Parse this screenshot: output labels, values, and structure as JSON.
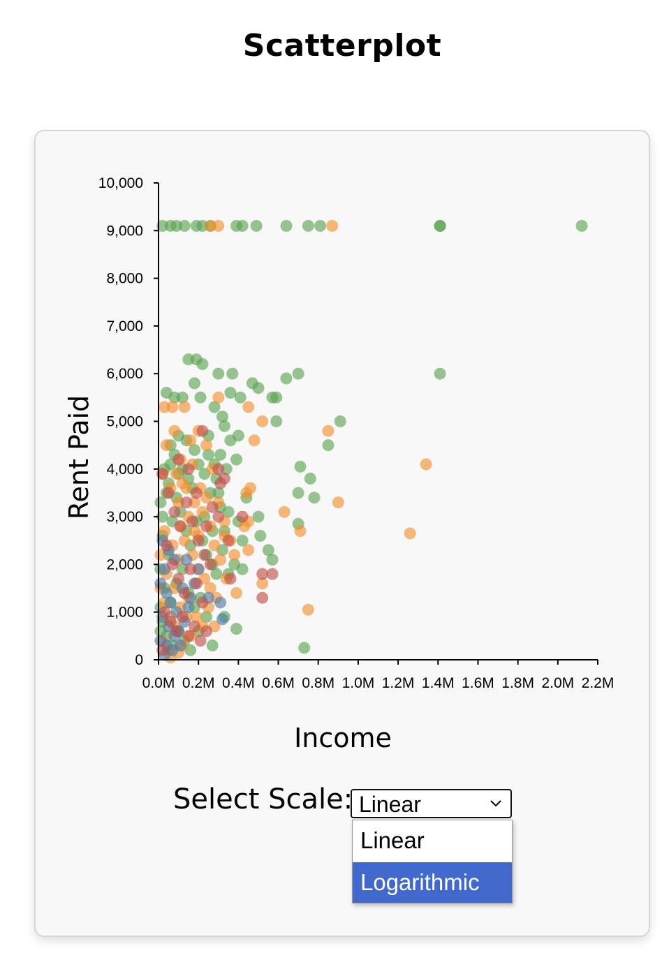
{
  "page": {
    "title": "Scatterplot"
  },
  "controls": {
    "scale_label": "Select Scale:",
    "selected_value": "Linear",
    "options": [
      "Linear",
      "Logarithmic"
    ],
    "highlighted_option": "Logarithmic",
    "highlight_color": "#4169cd"
  },
  "chart_data": {
    "type": "scatter",
    "title": "",
    "xlabel": "Income",
    "ylabel": "Rent Paid",
    "xlim": [
      0,
      2200000
    ],
    "ylim": [
      0,
      10000
    ],
    "x_ticks": [
      0,
      200000,
      400000,
      600000,
      800000,
      1000000,
      1200000,
      1400000,
      1600000,
      1800000,
      2000000,
      2200000
    ],
    "x_tick_labels": [
      "0.0M",
      "0.2M",
      "0.4M",
      "0.6M",
      "0.8M",
      "1.0M",
      "1.2M",
      "1.4M",
      "1.6M",
      "1.8M",
      "2.0M",
      "2.2M"
    ],
    "y_ticks": [
      0,
      1000,
      2000,
      3000,
      4000,
      5000,
      6000,
      7000,
      8000,
      9000,
      10000
    ],
    "y_tick_labels": [
      "0",
      "1,000",
      "2,000",
      "3,000",
      "4,000",
      "5,000",
      "6,000",
      "7,000",
      "8,000",
      "9,000",
      "10,000"
    ],
    "grid": false,
    "legend": "none",
    "series": [
      {
        "color": "#59a14f",
        "points": [
          [
            20000,
            9100
          ],
          [
            60000,
            9100
          ],
          [
            90000,
            9100
          ],
          [
            130000,
            9100
          ],
          [
            190000,
            9100
          ],
          [
            220000,
            9100
          ],
          [
            260000,
            9100
          ],
          [
            390000,
            9100
          ],
          [
            420000,
            9100
          ],
          [
            490000,
            9100
          ],
          [
            640000,
            9100
          ],
          [
            750000,
            9100
          ],
          [
            810000,
            9100
          ],
          [
            1410000,
            9100
          ],
          [
            1410000,
            9100
          ],
          [
            2120000,
            9100
          ],
          [
            1410000,
            6000
          ],
          [
            700000,
            6000
          ],
          [
            640000,
            5900
          ],
          [
            910000,
            5000
          ],
          [
            570000,
            5500
          ],
          [
            590000,
            5500
          ],
          [
            590000,
            5000
          ],
          [
            850000,
            4500
          ],
          [
            710000,
            4050
          ],
          [
            760000,
            3800
          ],
          [
            780000,
            3400
          ],
          [
            700000,
            3500
          ],
          [
            700000,
            2850
          ],
          [
            510000,
            2600
          ],
          [
            570000,
            2100
          ],
          [
            730000,
            250
          ],
          [
            390000,
            650
          ],
          [
            270000,
            300
          ],
          [
            190000,
            6300
          ],
          [
            150000,
            6300
          ],
          [
            220000,
            6200
          ],
          [
            300000,
            6000
          ],
          [
            370000,
            6000
          ],
          [
            470000,
            5800
          ],
          [
            500000,
            5700
          ],
          [
            180000,
            5800
          ],
          [
            210000,
            5500
          ],
          [
            280000,
            5300
          ],
          [
            320000,
            5100
          ],
          [
            40000,
            5600
          ],
          [
            80000,
            5500
          ],
          [
            120000,
            5500
          ],
          [
            360000,
            5600
          ],
          [
            410000,
            5500
          ],
          [
            330000,
            4900
          ],
          [
            360000,
            4600
          ],
          [
            250000,
            4700
          ],
          [
            400000,
            4700
          ],
          [
            310000,
            4300
          ],
          [
            390000,
            4200
          ],
          [
            440000,
            3400
          ],
          [
            400000,
            2900
          ],
          [
            420000,
            2500
          ],
          [
            500000,
            3000
          ],
          [
            550000,
            2300
          ],
          [
            380000,
            2000
          ],
          [
            420000,
            1900
          ],
          [
            350000,
            1800
          ],
          [
            330000,
            900
          ],
          [
            10000,
            3300
          ],
          [
            20000,
            3000
          ],
          [
            40000,
            3500
          ],
          [
            60000,
            4100
          ],
          [
            80000,
            4300
          ],
          [
            100000,
            3900
          ],
          [
            120000,
            4000
          ],
          [
            150000,
            3800
          ],
          [
            170000,
            3600
          ],
          [
            200000,
            4100
          ],
          [
            230000,
            3900
          ],
          [
            260000,
            3500
          ],
          [
            290000,
            3800
          ],
          [
            310000,
            3200
          ],
          [
            330000,
            2700
          ],
          [
            20000,
            2600
          ],
          [
            50000,
            2200
          ],
          [
            70000,
            2900
          ],
          [
            90000,
            3400
          ],
          [
            110000,
            3100
          ],
          [
            140000,
            2700
          ],
          [
            160000,
            2400
          ],
          [
            190000,
            2900
          ],
          [
            220000,
            2500
          ],
          [
            240000,
            2200
          ],
          [
            270000,
            2000
          ],
          [
            290000,
            1800
          ],
          [
            30000,
            1500
          ],
          [
            60000,
            1200
          ],
          [
            90000,
            1600
          ],
          [
            120000,
            1900
          ],
          [
            150000,
            1400
          ],
          [
            180000,
            1100
          ],
          [
            210000,
            1300
          ],
          [
            240000,
            900
          ],
          [
            20000,
            800
          ],
          [
            40000,
            500
          ],
          [
            70000,
            300
          ],
          [
            100000,
            600
          ],
          [
            130000,
            400
          ],
          [
            200000,
            600
          ],
          [
            60000,
            4500
          ],
          [
            100000,
            4700
          ],
          [
            140000,
            4600
          ],
          [
            180000,
            4400
          ],
          [
            30000,
            4000
          ],
          [
            50000,
            3700
          ],
          [
            230000,
            3000
          ],
          [
            270000,
            2700
          ],
          [
            10000,
            1900
          ],
          [
            10000,
            1100
          ],
          [
            10000,
            600
          ],
          [
            160000,
            200
          ],
          [
            250000,
            4300
          ],
          [
            280000,
            4100
          ],
          [
            340000,
            4000
          ],
          [
            300000,
            3500
          ],
          [
            350000,
            3100
          ],
          [
            320000,
            2300
          ]
        ]
      },
      {
        "color": "#f28e2b",
        "points": [
          [
            300000,
            9100
          ],
          [
            870000,
            9100
          ],
          [
            260000,
            9100
          ],
          [
            30000,
            5300
          ],
          [
            70000,
            5300
          ],
          [
            130000,
            5300
          ],
          [
            300000,
            5500
          ],
          [
            450000,
            5300
          ],
          [
            520000,
            5000
          ],
          [
            480000,
            4600
          ],
          [
            850000,
            4800
          ],
          [
            1340000,
            4100
          ],
          [
            900000,
            3300
          ],
          [
            630000,
            3100
          ],
          [
            710000,
            2700
          ],
          [
            1260000,
            2650
          ],
          [
            750000,
            1050
          ],
          [
            520000,
            1600
          ],
          [
            440000,
            3500
          ],
          [
            460000,
            3600
          ],
          [
            450000,
            2900
          ],
          [
            430000,
            2800
          ],
          [
            450000,
            2300
          ],
          [
            40000,
            4500
          ],
          [
            80000,
            4800
          ],
          [
            110000,
            4200
          ],
          [
            160000,
            4600
          ],
          [
            200000,
            4800
          ],
          [
            240000,
            4500
          ],
          [
            270000,
            4000
          ],
          [
            20000,
            3900
          ],
          [
            60000,
            3600
          ],
          [
            100000,
            3300
          ],
          [
            140000,
            3600
          ],
          [
            180000,
            3300
          ],
          [
            220000,
            3100
          ],
          [
            260000,
            2800
          ],
          [
            300000,
            3300
          ],
          [
            330000,
            2900
          ],
          [
            360000,
            2500
          ],
          [
            30000,
            2700
          ],
          [
            70000,
            2400
          ],
          [
            100000,
            2100
          ],
          [
            130000,
            2500
          ],
          [
            170000,
            2200
          ],
          [
            200000,
            1900
          ],
          [
            230000,
            1700
          ],
          [
            260000,
            1500
          ],
          [
            290000,
            1300
          ],
          [
            40000,
            1800
          ],
          [
            80000,
            1500
          ],
          [
            110000,
            1100
          ],
          [
            150000,
            1300
          ],
          [
            190000,
            900
          ],
          [
            220000,
            700
          ],
          [
            250000,
            1100
          ],
          [
            20000,
            400
          ],
          [
            50000,
            200
          ],
          [
            80000,
            700
          ],
          [
            120000,
            300
          ],
          [
            160000,
            500
          ],
          [
            30000,
            1200
          ],
          [
            60000,
            900
          ],
          [
            10000,
            2200
          ],
          [
            10000,
            1500
          ],
          [
            90000,
            3900
          ],
          [
            120000,
            3700
          ],
          [
            170000,
            4100
          ],
          [
            210000,
            3600
          ],
          [
            240000,
            3400
          ],
          [
            280000,
            2400
          ],
          [
            310000,
            2100
          ],
          [
            340000,
            1700
          ],
          [
            60000,
            50
          ],
          [
            100000,
            150
          ],
          [
            140000,
            900
          ],
          [
            180000,
            2700
          ],
          [
            330000,
            2600
          ],
          [
            380000,
            2200
          ],
          [
            390000,
            1400
          ],
          [
            280000,
            700
          ],
          [
            200000,
            2600
          ],
          [
            150000,
            3000
          ],
          [
            110000,
            2800
          ]
        ]
      },
      {
        "color": "#4e79a7",
        "points": [
          [
            20000,
            2500
          ],
          [
            50000,
            2300
          ],
          [
            80000,
            2100
          ],
          [
            30000,
            1900
          ],
          [
            10000,
            1600
          ],
          [
            40000,
            1400
          ],
          [
            60000,
            1200
          ],
          [
            90000,
            1000
          ],
          [
            20000,
            900
          ],
          [
            50000,
            700
          ],
          [
            80000,
            500
          ],
          [
            10000,
            400
          ],
          [
            40000,
            300
          ],
          [
            70000,
            200
          ],
          [
            100000,
            600
          ],
          [
            130000,
            800
          ],
          [
            150000,
            1100
          ],
          [
            120000,
            1500
          ],
          [
            160000,
            1300
          ],
          [
            180000,
            1600
          ],
          [
            250000,
            1300
          ],
          [
            310000,
            1200
          ],
          [
            320000,
            850
          ],
          [
            30000,
            100
          ],
          [
            110000,
            300
          ],
          [
            140000,
            2100
          ],
          [
            200000,
            1900
          ]
        ]
      },
      {
        "color": "#c04e47",
        "points": [
          [
            220000,
            4800
          ],
          [
            300000,
            4000
          ],
          [
            330000,
            3800
          ],
          [
            310000,
            3700
          ],
          [
            300000,
            3000
          ],
          [
            420000,
            3000
          ],
          [
            350000,
            2500
          ],
          [
            520000,
            1800
          ],
          [
            570000,
            1800
          ],
          [
            520000,
            1300
          ],
          [
            360000,
            1700
          ],
          [
            20000,
            3900
          ],
          [
            50000,
            3500
          ],
          [
            80000,
            3100
          ],
          [
            110000,
            2800
          ],
          [
            140000,
            3300
          ],
          [
            170000,
            2900
          ],
          [
            200000,
            2500
          ],
          [
            230000,
            2200
          ],
          [
            260000,
            2000
          ],
          [
            40000,
            2400
          ],
          [
            70000,
            2000
          ],
          [
            100000,
            1700
          ],
          [
            130000,
            1400
          ],
          [
            160000,
            1900
          ],
          [
            190000,
            1600
          ],
          [
            220000,
            1200
          ],
          [
            30000,
            1000
          ],
          [
            60000,
            800
          ],
          [
            90000,
            600
          ],
          [
            120000,
            900
          ],
          [
            150000,
            500
          ],
          [
            180000,
            700
          ],
          [
            210000,
            400
          ],
          [
            240000,
            600
          ],
          [
            20000,
            200
          ],
          [
            270000,
            3200
          ],
          [
            240000,
            2800
          ],
          [
            190000,
            3500
          ],
          [
            150000,
            4000
          ],
          [
            100000,
            4200
          ]
        ]
      }
    ]
  }
}
